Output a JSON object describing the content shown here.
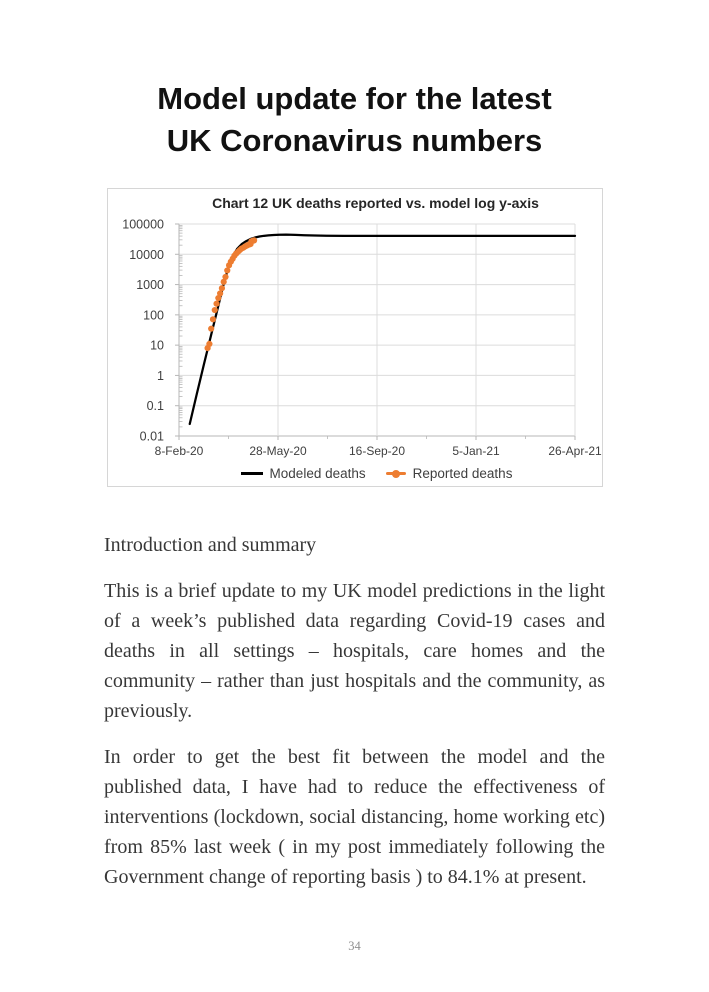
{
  "page": {
    "title_lines": [
      "Model update for the latest",
      "UK Coronavirus numbers"
    ],
    "section_heading": "Introduction and summary",
    "paragraphs": [
      "This is a brief update to my UK model predictions in the light of a week’s published data regarding Covid-19 cases and deaths in all settings – hospitals, care homes and the community – rather than just hospitals and the community, as previously.",
      "In order to get the best fit between the model and the published data, I have had to reduce the effectiveness of interventions (lockdown, social distancing, home working etc) from 85% last week ( in my post immediately following the Government change of reporting basis ) to 84.1% at present."
    ],
    "page_number": "34"
  },
  "chart_data": {
    "type": "line",
    "title": "Chart 12 UK deaths reported vs. model log y-axis",
    "y_scale": "log",
    "ylim": [
      0.01,
      100000
    ],
    "y_ticks": [
      "100000",
      "10000",
      "1000",
      "100",
      "10",
      "1",
      "0.1",
      "0.01"
    ],
    "x_ticks": [
      "8-Feb-20",
      "28-May-20",
      "16-Sep-20",
      "5-Jan-21",
      "26-Apr-21"
    ],
    "x_tick_days": [
      0,
      110.75,
      221.5,
      332.25,
      443
    ],
    "x_range_days": [
      0,
      443
    ],
    "grid": true,
    "legend_position": "bottom",
    "series": [
      {
        "name": "Modeled deaths",
        "style": "line",
        "color": "#000000",
        "points": [
          [
            12,
            0.025
          ],
          [
            20,
            0.25
          ],
          [
            28,
            2.4
          ],
          [
            36,
            22
          ],
          [
            44,
            200
          ],
          [
            50,
            1050
          ],
          [
            55,
            3400
          ],
          [
            60,
            8500
          ],
          [
            65,
            15000
          ],
          [
            70,
            21500
          ],
          [
            75,
            27000
          ],
          [
            80,
            32000
          ],
          [
            85,
            35800
          ],
          [
            90,
            38600
          ],
          [
            95,
            40700
          ],
          [
            100,
            42300
          ],
          [
            106,
            43500
          ],
          [
            112,
            44200
          ],
          [
            120,
            44600
          ],
          [
            130,
            43800
          ],
          [
            140,
            42700
          ],
          [
            152,
            41600
          ],
          [
            165,
            40900
          ],
          [
            185,
            40600
          ],
          [
            250,
            40600
          ],
          [
            443,
            40700
          ]
        ]
      },
      {
        "name": "Reported deaths",
        "style": "markers",
        "color": "#ED7D31",
        "points": [
          [
            32,
            8
          ],
          [
            34,
            11
          ],
          [
            36,
            35
          ],
          [
            38,
            71
          ],
          [
            40,
            144
          ],
          [
            42,
            233
          ],
          [
            44,
            359
          ],
          [
            46,
            508
          ],
          [
            48,
            759
          ],
          [
            50,
            1228
          ],
          [
            52,
            1789
          ],
          [
            54,
            2921
          ],
          [
            56,
            4313
          ],
          [
            58,
            5683
          ],
          [
            60,
            7097
          ],
          [
            62,
            8958
          ],
          [
            64,
            10612
          ],
          [
            66,
            12107
          ],
          [
            68,
            13729
          ],
          [
            70,
            15464
          ],
          [
            72,
            16509
          ],
          [
            74,
            18100
          ],
          [
            76,
            19506
          ],
          [
            78,
            20732
          ],
          [
            80,
            21678
          ],
          [
            81,
            26711
          ],
          [
            82,
            27510
          ],
          [
            83,
            28131
          ],
          [
            84,
            28734
          ]
        ]
      }
    ]
  },
  "colors": {
    "reported_orange": "#ED7D31",
    "model_black": "#000000",
    "gridline_gray": "#dcdcdc",
    "axis_gray": "#b7b7b7",
    "chart_text_gray": "#404040"
  }
}
